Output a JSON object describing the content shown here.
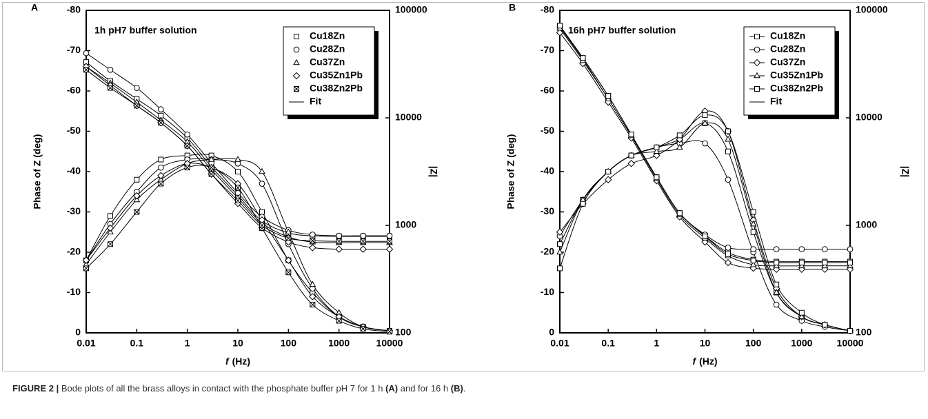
{
  "chart_data": [
    {
      "type": "line",
      "panel_label": "A",
      "title": "1h pH7 buffer solution",
      "x": [
        0.01,
        0.03,
        0.1,
        0.3,
        1,
        3,
        10,
        30,
        100,
        300,
        1000,
        3000,
        10000
      ],
      "x_scale": "log",
      "xlim": [
        0.01,
        10000
      ],
      "xticks": [
        0.01,
        0.1,
        1,
        10,
        100,
        1000,
        10000
      ],
      "x_label_symbol": "f",
      "x_label": "(Hz)",
      "y_label": "Phase of Z (deg)",
      "ylim": [
        0,
        -80
      ],
      "yticks": [
        0,
        -10,
        -20,
        -30,
        -40,
        -50,
        -60,
        -70,
        -80
      ],
      "y2_label": "|Z|",
      "y2_scale": "log",
      "y2lim": [
        100,
        100000
      ],
      "y2ticks": [
        100,
        1000,
        10000,
        100000
      ],
      "legend": "upper right",
      "legend_lines": false,
      "fit_label": "Fit",
      "series": [
        {
          "name": "Cu18Zn",
          "marker": "square",
          "color": "#000000",
          "values": [
            -18,
            -29,
            -38,
            -43,
            -44,
            -44,
            -40,
            -30,
            -18,
            -10,
            -4,
            -1.5,
            -0.5
          ],
          "z_values": [
            33000,
            22000,
            15000,
            10500,
            6500,
            3500,
            1900,
            1100,
            850,
            800,
            790,
            790,
            790
          ]
        },
        {
          "name": "Cu28Zn",
          "marker": "circle",
          "color": "#000000",
          "values": [
            -18,
            -27,
            -35,
            -41,
            -43,
            -43,
            -42,
            -37,
            -22,
            -11,
            -4,
            -1.5,
            -0.5
          ],
          "z_values": [
            40000,
            28000,
            19000,
            12000,
            7000,
            3800,
            2000,
            1200,
            900,
            820,
            800,
            800,
            800
          ]
        },
        {
          "name": "Cu37Zn",
          "marker": "triangle",
          "color": "#000000",
          "values": [
            -17,
            -25,
            -33,
            -38,
            -42,
            -43,
            -43,
            -40,
            -25,
            -12,
            -5,
            -1.5,
            -0.5
          ],
          "z_values": [
            30000,
            21000,
            14000,
            9500,
            6000,
            3300,
            1800,
            1050,
            780,
            700,
            690,
            690,
            690
          ]
        },
        {
          "name": "Cu35Zn1Pb",
          "marker": "diamond",
          "color": "#000000",
          "values": [
            -18,
            -26,
            -34,
            -39,
            -42,
            -41,
            -37,
            -28,
            -18,
            -9,
            -4,
            -1.5,
            -0.5
          ],
          "z_values": [
            30000,
            20000,
            13000,
            9000,
            5500,
            3000,
            1600,
            950,
            700,
            620,
            600,
            600,
            600
          ]
        },
        {
          "name": "Cu38Zn2Pb",
          "marker": "square-x",
          "color": "#000000",
          "values": [
            -16,
            -22,
            -30,
            -37,
            -41,
            -41,
            -36,
            -26,
            -15,
            -7,
            -3,
            -1,
            -0.3
          ],
          "z_values": [
            28000,
            19000,
            13000,
            9000,
            5500,
            3000,
            1700,
            1000,
            760,
            720,
            710,
            710,
            710
          ]
        }
      ]
    },
    {
      "type": "line",
      "panel_label": "B",
      "title": "16h pH7 buffer solution",
      "x": [
        0.01,
        0.03,
        0.1,
        0.3,
        1,
        3,
        10,
        30,
        100,
        300,
        1000,
        3000,
        10000
      ],
      "x_scale": "log",
      "xlim": [
        0.01,
        10000
      ],
      "xticks": [
        0.01,
        0.1,
        1,
        10,
        100,
        1000,
        10000
      ],
      "x_label_symbol": "f",
      "x_label": "(Hz)",
      "y_label": "Phase of Z (deg)",
      "ylim": [
        0,
        -80
      ],
      "yticks": [
        0,
        -10,
        -20,
        -30,
        -40,
        -50,
        -60,
        -70,
        -80
      ],
      "y2_label": "|Z|",
      "y2_scale": "log",
      "y2lim": [
        100,
        100000
      ],
      "y2ticks": [
        100,
        1000,
        10000,
        100000
      ],
      "legend": "upper right",
      "legend_lines": true,
      "fit_label": "Fit",
      "series": [
        {
          "name": "Cu18Zn",
          "marker": "square",
          "color": "#000000",
          "values": [
            -22,
            -33,
            -40,
            -44,
            -46,
            -48,
            -52,
            -45,
            -25,
            -10,
            -4,
            -2,
            -0.5
          ],
          "z_values": [
            72000,
            36000,
            16000,
            7000,
            2800,
            1300,
            800,
            560,
            480,
            460,
            460,
            460,
            460
          ]
        },
        {
          "name": "Cu28Zn",
          "marker": "circle",
          "color": "#000000",
          "values": [
            -24,
            -33,
            -40,
            -44,
            -46,
            -47,
            -47,
            -38,
            -20,
            -7,
            -3,
            -1.5,
            -0.5
          ],
          "z_values": [
            70000,
            35000,
            15000,
            6800,
            2800,
            1300,
            820,
            620,
            600,
            600,
            600,
            600,
            600
          ]
        },
        {
          "name": "Cu37Zn",
          "marker": "diamond",
          "color": "#000000",
          "values": [
            -25,
            -32,
            -38,
            -42,
            -44,
            -48,
            -55,
            -50,
            -28,
            -11,
            -4,
            -2,
            -0.5
          ],
          "z_values": [
            62000,
            32000,
            14000,
            6500,
            2600,
            1200,
            700,
            450,
            400,
            390,
            390,
            390,
            390
          ]
        },
        {
          "name": "Cu35Zn1Pb",
          "marker": "triangle",
          "color": "#000000",
          "values": [
            -20,
            -33,
            -40,
            -44,
            -45,
            -46,
            -52,
            -48,
            -27,
            -10,
            -4,
            -2,
            -0.5
          ],
          "z_values": [
            68000,
            34000,
            15000,
            6800,
            2700,
            1250,
            760,
            520,
            430,
            420,
            420,
            420,
            420
          ]
        },
        {
          "name": "Cu38Zn2Pb",
          "marker": "square",
          "color": "#000000",
          "values": [
            -16,
            -32,
            -40,
            -44,
            -46,
            -49,
            -54,
            -50,
            -30,
            -12,
            -5,
            -2,
            -0.5
          ],
          "z_values": [
            72000,
            36000,
            16000,
            7000,
            2800,
            1300,
            790,
            540,
            470,
            450,
            450,
            450,
            450
          ]
        }
      ]
    }
  ],
  "caption": {
    "label": "FIGURE 2 |",
    "text1": "Bode plots of all the brass alloys in contact with the phosphate buffer pH 7 for 1 h",
    "ref_a": "(A)",
    "text2": "and for 16 h",
    "ref_b": "(B)",
    "end": "."
  }
}
